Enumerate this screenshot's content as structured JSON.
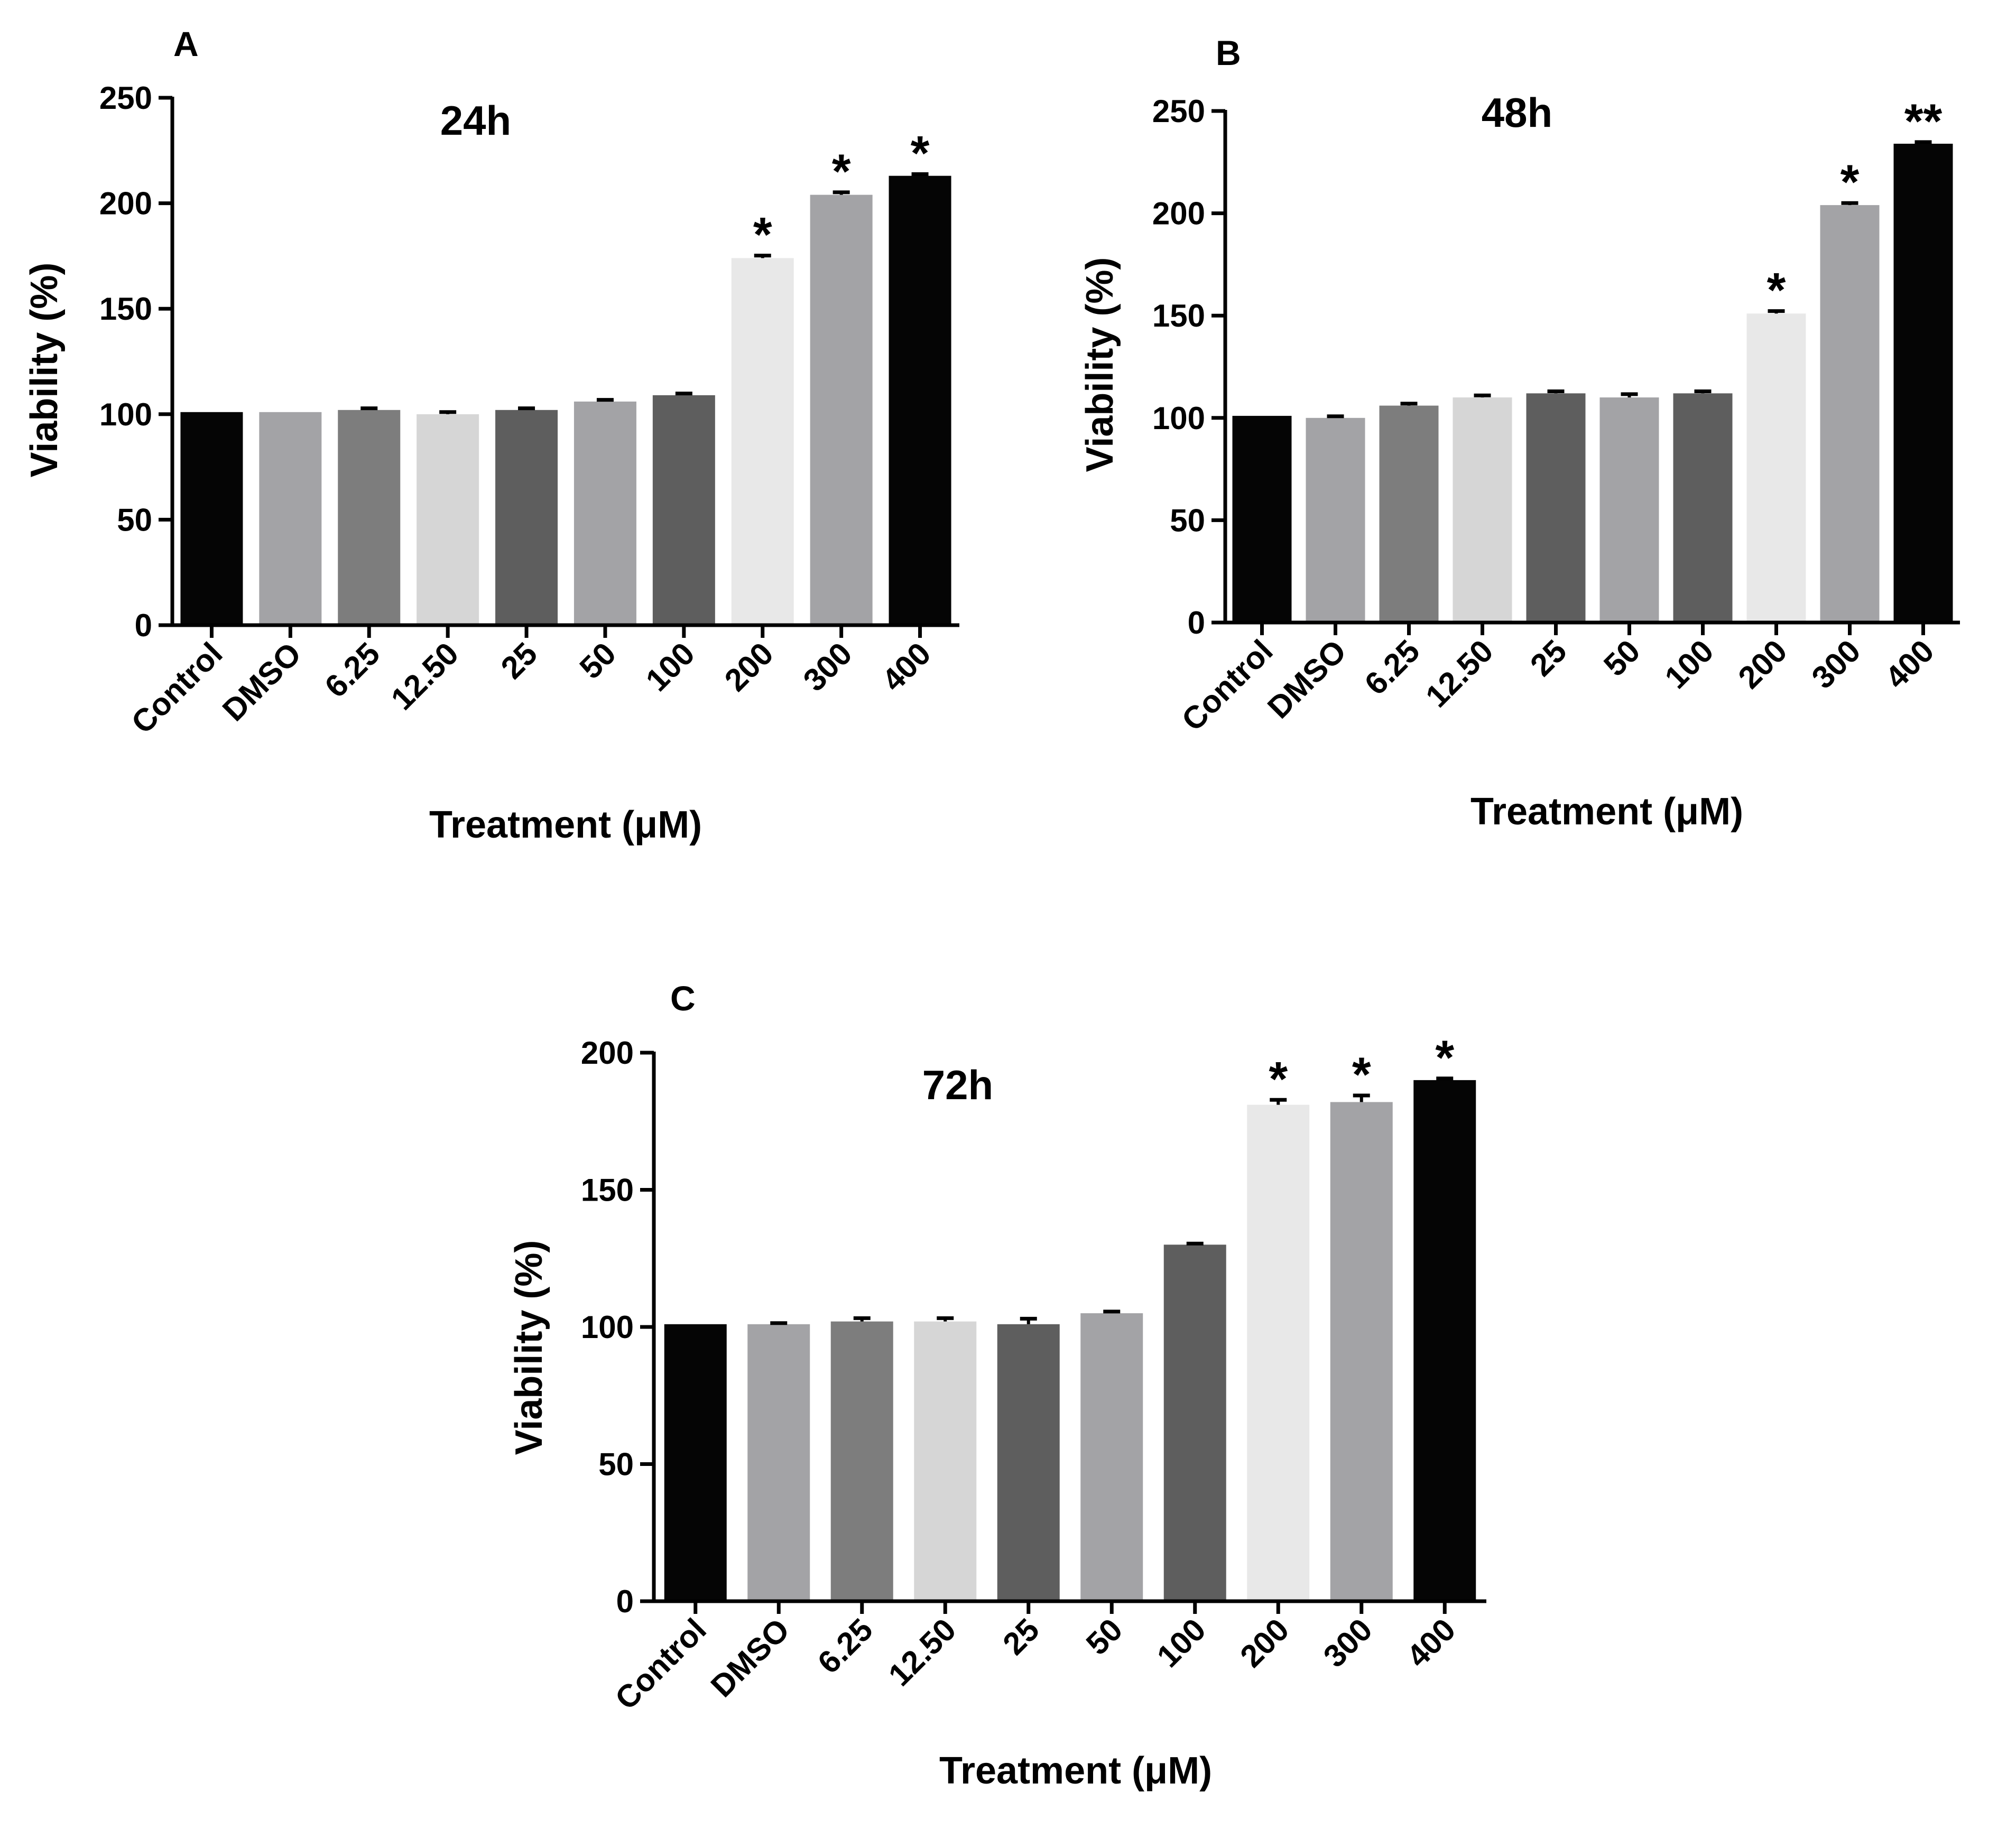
{
  "chart_data": [
    {
      "type": "bar",
      "panel": "A",
      "title": "24h",
      "xlabel": "Treatment (μM)",
      "ylabel": "Viability (%)",
      "ylim": [
        0,
        250
      ],
      "yticks": [
        0,
        50,
        100,
        150,
        200,
        250
      ],
      "categories": [
        "Control",
        "DMSO",
        "6.25",
        "12.50",
        "25",
        "50",
        "100",
        "200",
        "300",
        "400"
      ],
      "values": [
        101,
        101,
        102,
        100,
        102,
        106,
        109,
        174,
        204,
        213
      ],
      "errors": [
        0,
        0,
        0.8,
        1.0,
        0.8,
        0.8,
        0.8,
        1.2,
        1.2,
        0.8
      ],
      "significance": [
        "",
        "",
        "",
        "",
        "",
        "",
        "",
        "*",
        "*",
        "*"
      ],
      "bar_colors": [
        "#050505",
        "#a3a3a6",
        "#7d7d7d",
        "#d6d6d6",
        "#5e5e5e",
        "#a3a3a6",
        "#5e5e5e",
        "#e8e8e8",
        "#a3a3a6",
        "#050505"
      ]
    },
    {
      "type": "bar",
      "panel": "B",
      "title": "48h",
      "xlabel": "Treatment (μM)",
      "ylabel": "Viability (%)",
      "ylim": [
        0,
        250
      ],
      "yticks": [
        0,
        50,
        100,
        150,
        200,
        250
      ],
      "categories": [
        "Control",
        "DMSO",
        "6.25",
        "12.50",
        "25",
        "50",
        "100",
        "200",
        "300",
        "400"
      ],
      "values": [
        101,
        100,
        106,
        110,
        112,
        110,
        112,
        151,
        204,
        234
      ],
      "errors": [
        0,
        0.8,
        1.0,
        1.0,
        1.0,
        1.6,
        1.0,
        1.2,
        1.0,
        0.8
      ],
      "significance": [
        "",
        "",
        "",
        "",
        "",
        "",
        "",
        "*",
        "*",
        "**"
      ],
      "bar_colors": [
        "#050505",
        "#a3a3a6",
        "#7d7d7d",
        "#d6d6d6",
        "#5e5e5e",
        "#a3a3a6",
        "#5e5e5e",
        "#e8e8e8",
        "#a3a3a6",
        "#050505"
      ]
    },
    {
      "type": "bar",
      "panel": "C",
      "title": "72h",
      "xlabel": "Treatment (μM)",
      "ylabel": "Viability (%)",
      "ylim": [
        0,
        200
      ],
      "yticks": [
        0,
        50,
        100,
        150,
        200
      ],
      "categories": [
        "Control",
        "DMSO",
        "6.25",
        "12.50",
        "25",
        "50",
        "100",
        "200",
        "300",
        "400"
      ],
      "values": [
        101,
        101,
        102,
        102,
        101,
        105,
        130,
        181,
        182,
        190
      ],
      "errors": [
        0,
        0.4,
        1.2,
        1.2,
        2.0,
        0.6,
        0.4,
        1.8,
        2.4,
        0.6
      ],
      "significance": [
        "",
        "",
        "",
        "",
        "",
        "",
        "",
        "*",
        "*",
        "*"
      ],
      "bar_colors": [
        "#050505",
        "#a3a3a6",
        "#7d7d7d",
        "#d6d6d6",
        "#5e5e5e",
        "#a3a3a6",
        "#5e5e5e",
        "#e8e8e8",
        "#a3a3a6",
        "#050505"
      ]
    }
  ]
}
